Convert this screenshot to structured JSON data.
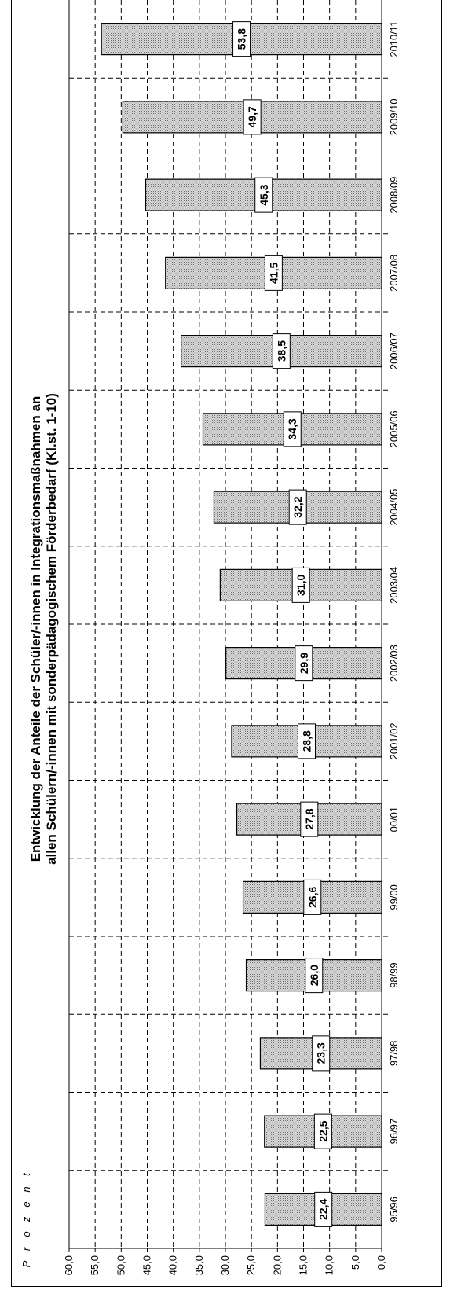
{
  "chart_data": {
    "type": "bar",
    "title": "Entwicklung der Anteile der Schüler/-innen in Integrationsmaßnahmen an allen Schülern/-innen mit sonderpädagogischem Förderbedarf (Kl.st. 1-10)",
    "title_lines": [
      "Entwicklung der Anteile der Schüler/-innen in Integrationsmaßnahmen an",
      "allen Schülern/-innen mit sonderpädagogischem Förderbedarf (Kl.st. 1-10)"
    ],
    "ylabel": "Prozent",
    "ylim": [
      0,
      60
    ],
    "ytick_labels": [
      "0,0",
      "5,0",
      "10,0",
      "15,0",
      "20,0",
      "25,0",
      "30,0",
      "35,0",
      "40,0",
      "45,0",
      "50,0",
      "55,0",
      "60,0"
    ],
    "categories": [
      "95/96",
      "96/97",
      "97/98",
      "98/99",
      "99/00",
      "00/01",
      "2001/02",
      "2002/03",
      "2003/04",
      "2004/05",
      "2005/06",
      "2006/07",
      "2007/08",
      "2008/09",
      "2009/10",
      "2010/11"
    ],
    "values": [
      22.4,
      22.5,
      23.3,
      26.0,
      26.6,
      27.8,
      28.8,
      29.9,
      31.0,
      32.2,
      34.3,
      38.5,
      41.5,
      45.3,
      49.7,
      53.8
    ],
    "value_labels": [
      "22,4",
      "22,5",
      "23,3",
      "26,0",
      "26,6",
      "27,8",
      "28,8",
      "29,9",
      "31,0",
      "32,2",
      "34,3",
      "38,5",
      "41,5",
      "45,3",
      "49,7",
      "53,8"
    ],
    "grid": true
  }
}
